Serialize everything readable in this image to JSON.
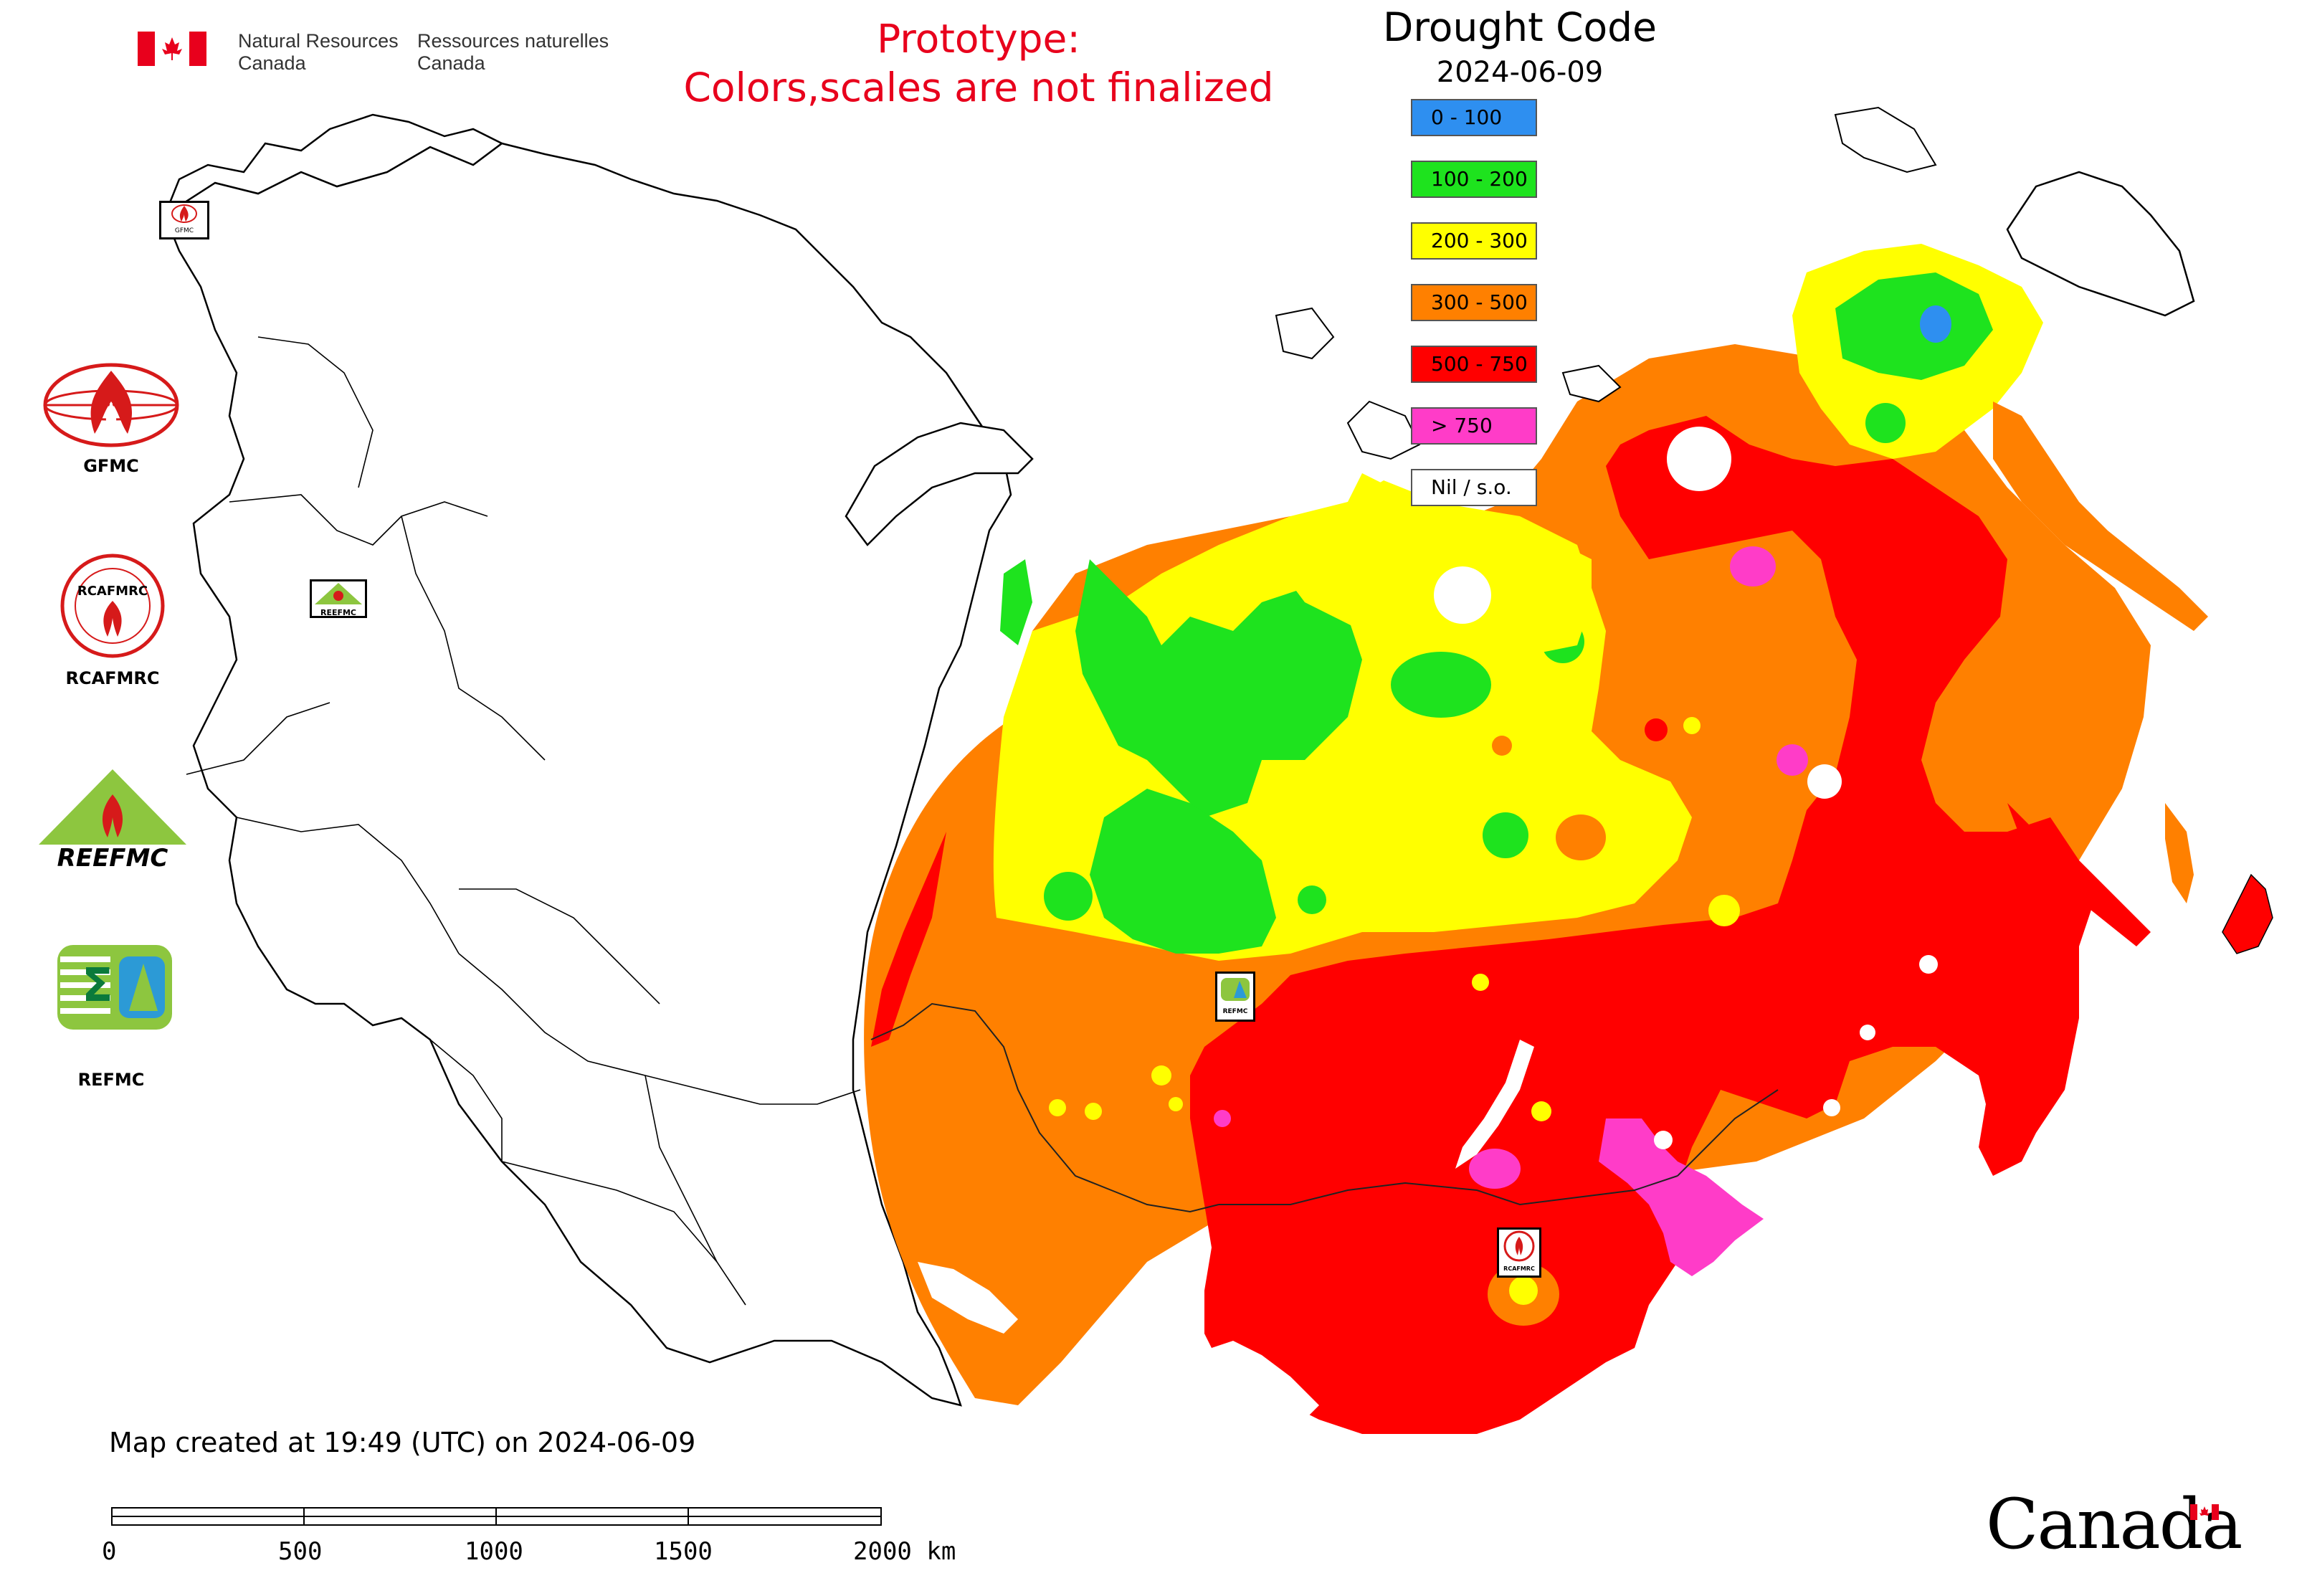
{
  "header": {
    "department_en_line1": "Natural Resources",
    "department_en_line2": "Canada",
    "department_fr_line1": "Ressources naturelles",
    "department_fr_line2": "Canada",
    "prototype_line1": "Prototype:",
    "prototype_line2": "Colors,scales are not finalized"
  },
  "legend": {
    "title": "Drought Code",
    "date": "2024-06-09",
    "classes": [
      {
        "label": "0 - 100",
        "color": "#2e8ff0"
      },
      {
        "label": "100 - 200",
        "color": "#1ee31e"
      },
      {
        "label": "200 - 300",
        "color": "#ffff00"
      },
      {
        "label": "300 - 500",
        "color": "#ff8000"
      },
      {
        "label": "500 - 750",
        "color": "#ff0000"
      },
      {
        "label": "> 750",
        "color": "#ff3cc8"
      },
      {
        "label": "Nil / s.o.",
        "color": "#ffffff"
      }
    ]
  },
  "logos": {
    "gfmc": "GFMC",
    "rcafmrc": "RCAFMRC",
    "reefmc": "REEFMC",
    "refmc": "REFMC",
    "gfmc_marker": "GFMC",
    "reefmc_marker": "REEFMC",
    "refmc_marker": "REFMC",
    "rcafmrc_marker": "RCAFMRC"
  },
  "footer": {
    "created": "Map created at 19:49 (UTC) on 2024-06-09",
    "scale_ticks": [
      "0",
      "500",
      "1000",
      "1500",
      "2000 km"
    ],
    "wordmark": "Canada"
  },
  "colors": {
    "blue": "#2e8ff0",
    "green": "#1ee31e",
    "yellow": "#ffff00",
    "orange": "#ff8000",
    "red": "#ff0000",
    "magenta": "#ff3cc8",
    "canada_red": "#e8001c"
  }
}
